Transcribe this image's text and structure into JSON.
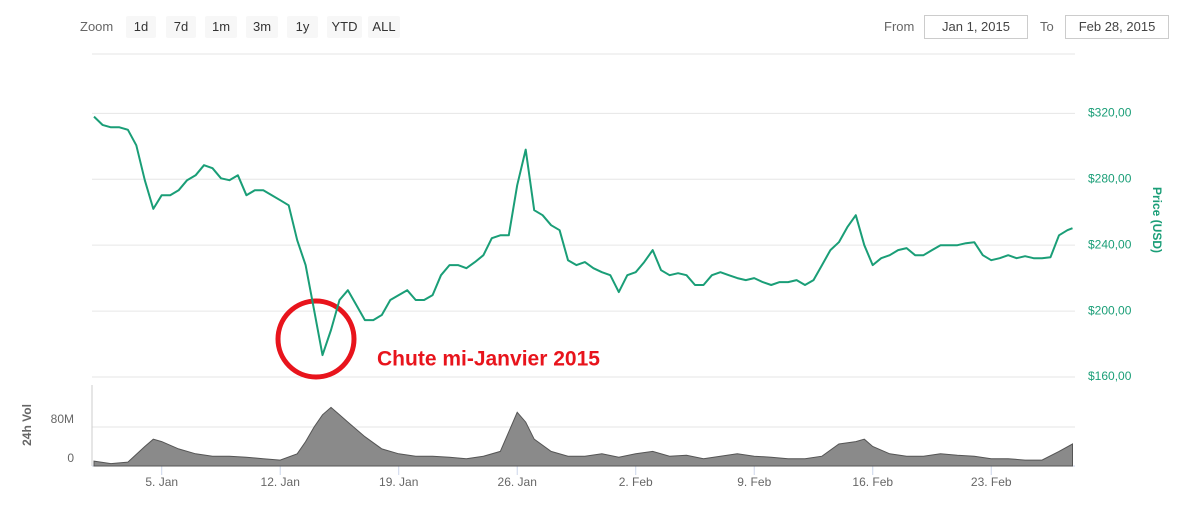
{
  "toolbar": {
    "zoom_label": "Zoom",
    "buttons": [
      "1d",
      "7d",
      "1m",
      "3m",
      "1y",
      "YTD",
      "ALL"
    ],
    "from_label": "From",
    "from_value": "Jan 1, 2015",
    "to_label": "To",
    "to_value": "Feb 28, 2015"
  },
  "chart_data": [
    {
      "type": "line",
      "y_label": "Price (USD)",
      "annotation": "Chute mi-Janvier 2015",
      "color": "#1a9e77",
      "x": [
        0,
        0.5,
        1,
        1.5,
        2,
        2.5,
        3,
        3.5,
        4,
        4.5,
        5,
        5.5,
        6,
        6.5,
        7,
        7.5,
        8,
        8.5,
        9,
        9.5,
        10,
        10.5,
        11,
        11.5,
        12,
        12.5,
        13,
        13.5,
        14,
        14.5,
        15,
        15.5,
        16,
        16.5,
        17,
        17.5,
        18,
        18.5,
        19,
        19.5,
        20,
        20.5,
        21,
        21.5,
        22,
        22.5,
        23,
        23.5,
        24,
        24.5,
        25,
        25.5,
        26,
        26.5,
        27,
        27.5,
        28,
        28.5,
        29,
        29.5,
        30,
        30.5,
        31,
        31.5,
        32,
        32.5,
        33,
        33.5,
        34,
        34.5,
        35,
        35.5,
        36,
        36.5,
        37,
        37.5,
        38,
        38.5,
        39,
        39.5,
        40,
        40.5,
        41,
        41.5,
        42,
        42.5,
        43,
        43.5,
        44,
        44.5,
        45,
        45.5,
        46,
        46.5,
        47,
        47.5,
        48,
        48.5,
        49,
        49.5,
        50,
        50.5,
        51,
        51.5,
        52,
        52.5,
        53,
        53.5,
        54,
        54.5,
        55,
        55.5,
        56,
        56.5,
        57,
        57.5,
        57.8
      ],
      "values": [
        318,
        313,
        311.5,
        311.5,
        310,
        300.6,
        279.4,
        262,
        270.3,
        270.3,
        273.3,
        279.4,
        282.4,
        288.5,
        286.7,
        280.6,
        279.4,
        282.4,
        270.3,
        273.3,
        273.3,
        270.3,
        267.3,
        264.2,
        243,
        227.9,
        200.6,
        173.3,
        188.5,
        206.7,
        212.7,
        203.6,
        194.5,
        194.5,
        197.6,
        206.7,
        209.7,
        212.7,
        206.7,
        206.7,
        209.7,
        221.8,
        227.9,
        227.9,
        226,
        229.7,
        233.9,
        244.2,
        246,
        246,
        276.4,
        298,
        261.2,
        258.2,
        252.1,
        249.1,
        230.9,
        227.9,
        229.7,
        226,
        223.6,
        221.8,
        211.5,
        221.8,
        223.6,
        229.7,
        237,
        224.8,
        221.8,
        223,
        221.8,
        215.8,
        215.8,
        221.8,
        223.6,
        221.8,
        220,
        218.8,
        220,
        217.6,
        215.8,
        217.6,
        217.6,
        218.8,
        215.8,
        218.8,
        227.9,
        237,
        241.8,
        250.9,
        258.2,
        240,
        227.9,
        232.1,
        233.9,
        237,
        238.2,
        233.9,
        233.9,
        237,
        240,
        240,
        240,
        241.2,
        241.8,
        233.9,
        230.9,
        232.1,
        233.9,
        232.1,
        233.3,
        232.1,
        232.1,
        232.7,
        246,
        249.1,
        250.3
      ],
      "xlim": [
        0,
        57.9
      ],
      "xticks": [
        {
          "value": 4,
          "label": "5. Jan"
        },
        {
          "value": 11,
          "label": "12. Jan"
        },
        {
          "value": 18,
          "label": "19. Jan"
        },
        {
          "value": 25,
          "label": "26. Jan"
        },
        {
          "value": 32,
          "label": "2. Feb"
        },
        {
          "value": 39,
          "label": "9. Feb"
        },
        {
          "value": 46,
          "label": "16. Feb"
        },
        {
          "value": 53,
          "label": "23. Feb"
        }
      ],
      "ylim": [
        160,
        356
      ],
      "yticks": [
        {
          "value": 160,
          "label": "$160,00"
        },
        {
          "value": 200,
          "label": "$200,00"
        },
        {
          "value": 240,
          "label": "$240,00"
        },
        {
          "value": 280,
          "label": "$280,00"
        },
        {
          "value": 320,
          "label": "$320,00"
        }
      ],
      "grid": true
    },
    {
      "type": "area",
      "y_label": "24h Vol",
      "color": "#8a8a8a",
      "x": [
        0,
        1,
        2,
        3,
        3.5,
        4,
        5,
        6,
        7,
        8,
        9,
        10,
        11,
        12,
        12.5,
        13,
        13.5,
        14,
        14.5,
        15,
        16,
        17,
        18,
        19,
        20,
        21,
        22,
        23,
        24,
        24.5,
        25,
        25.5,
        26,
        27,
        28,
        29,
        30,
        31,
        32,
        33,
        34,
        35,
        36,
        37,
        38,
        39,
        40,
        41,
        42,
        43,
        44,
        45,
        45.5,
        46,
        47,
        48,
        49,
        50,
        51,
        52,
        53,
        54,
        55,
        56,
        57,
        57.8
      ],
      "values": [
        10,
        5,
        8,
        40,
        55,
        50,
        35,
        25,
        20,
        20,
        18,
        15,
        12,
        25,
        50,
        80,
        105,
        120,
        105,
        90,
        60,
        35,
        25,
        20,
        20,
        18,
        15,
        20,
        30,
        70,
        110,
        90,
        55,
        30,
        20,
        20,
        25,
        18,
        25,
        30,
        20,
        22,
        15,
        20,
        25,
        20,
        18,
        15,
        15,
        20,
        45,
        50,
        55,
        40,
        25,
        20,
        20,
        25,
        22,
        20,
        15,
        15,
        12,
        12,
        30,
        45
      ],
      "xlim": [
        0,
        57.9
      ],
      "ylim": [
        0,
        166
      ],
      "yticks": [
        0,
        {
          "value": 80,
          "label": "80M"
        }
      ],
      "grid": true
    }
  ]
}
